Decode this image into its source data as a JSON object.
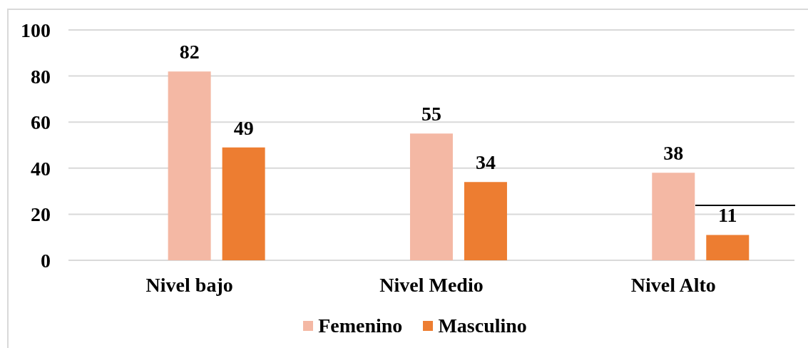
{
  "chart_data": {
    "type": "bar",
    "categories": [
      "Nivel bajo",
      "Nivel Medio",
      "Nivel Alto"
    ],
    "series": [
      {
        "name": "Femenino",
        "color": "#f4b8a4",
        "values": [
          82,
          55,
          38
        ]
      },
      {
        "name": "Masculino",
        "color": "#ed7d31",
        "values": [
          49,
          34,
          11
        ]
      }
    ],
    "ylim": [
      0,
      100
    ],
    "yticks": [
      0,
      20,
      40,
      60,
      80,
      100
    ],
    "grid": "y",
    "legend": "bottom",
    "data_labels": true
  }
}
